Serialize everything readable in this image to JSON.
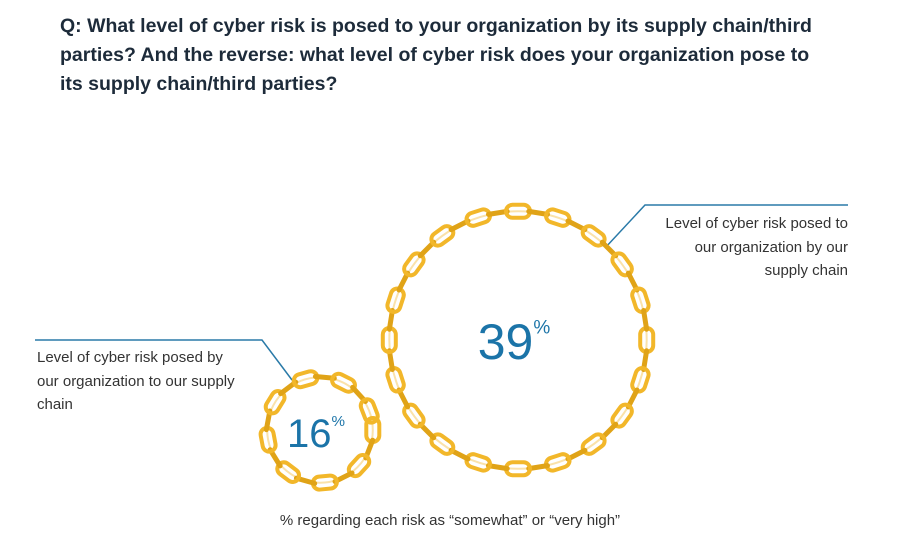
{
  "chart_data": {
    "type": "chain-circle",
    "title": "Q: What level of cyber risk is posed to your organization by its supply chain/third parties? And the reverse: what level of cyber risk does your organization pose to its supply chain/third parties?",
    "categories": [
      "Level of cyber risk posed to our organization by our supply chain",
      "Level of cyber risk posed by our organization to our supply chain"
    ],
    "values": [
      39,
      16
    ],
    "unit": "%",
    "color": "#f2b72a",
    "note": "% regarding each risk as “somewhat” or “very high”"
  }
}
